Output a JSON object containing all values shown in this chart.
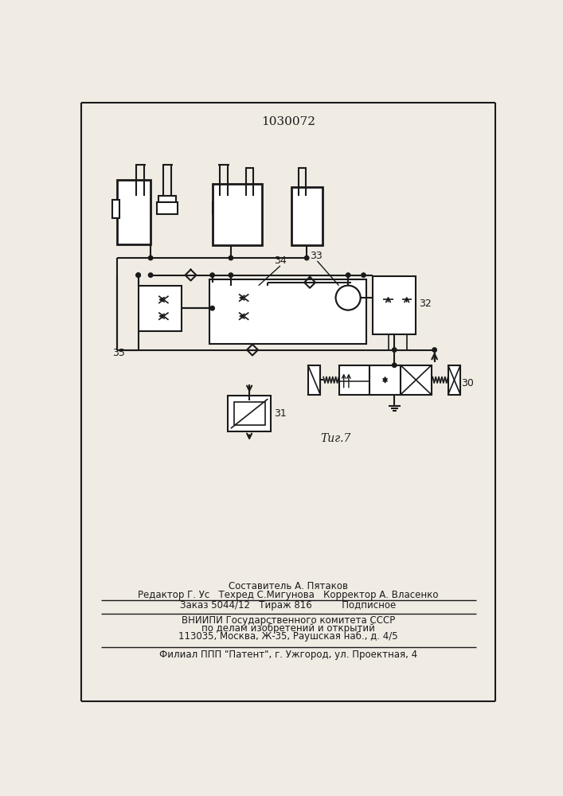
{
  "title": "1030072",
  "bg_color": "#f0ece4",
  "line_color": "#1a1a1a",
  "fig_label": "Τиг.7",
  "label_30": "30",
  "label_31": "31",
  "label_32": "32",
  "label_33": "33",
  "label_34": "34",
  "label_35": "35",
  "footer": {
    "line1": "Составитель А. Пятаков",
    "line2": "Редактор Г. Ус   Техред С.Мигунова   Корректор А. Власенко",
    "line3": "Заказ 5044/12   Тираж 816          Подписное",
    "line4": "ВНИИПИ Государственного комитета СССР",
    "line5": "по делам изобретений и открытий",
    "line6": "113035, Москва, Ж-35, Раушская наб., д. 4/5",
    "line7": "Филиал ППП \"Патент\", г. Ужгород, ул. Проектная, 4"
  }
}
